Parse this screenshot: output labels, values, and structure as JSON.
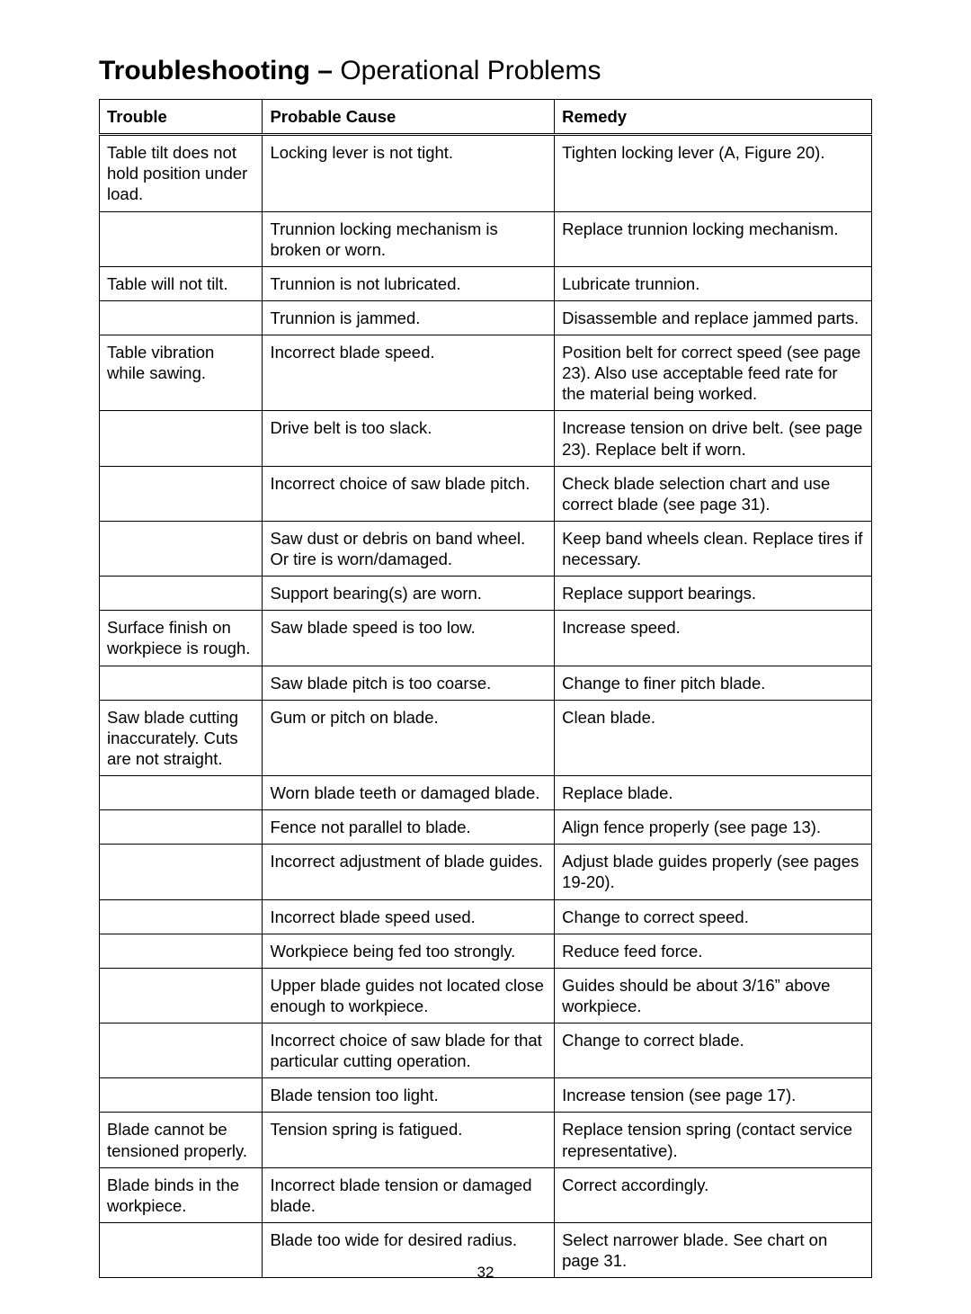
{
  "title_bold": "Troubleshooting –",
  "title_rest": " Operational Problems",
  "page_number": "32",
  "headers": {
    "trouble": "Trouble",
    "cause": "Probable Cause",
    "remedy": "Remedy"
  },
  "groups": [
    {
      "trouble": "Table tilt does not hold position under load.",
      "rows": [
        {
          "cause": "Locking lever is not tight.",
          "remedy": "Tighten locking lever (A, Figure 20)."
        },
        {
          "cause": "Trunnion locking mechanism is broken or worn.",
          "remedy": "Replace trunnion locking mechanism."
        }
      ]
    },
    {
      "trouble": "Table will not tilt.",
      "rows": [
        {
          "cause": "Trunnion is not lubricated.",
          "remedy": "Lubricate trunnion."
        },
        {
          "cause": "Trunnion is jammed.",
          "remedy": "Disassemble and replace jammed parts."
        }
      ]
    },
    {
      "trouble": "Table vibration while sawing.",
      "rows": [
        {
          "cause": "Incorrect blade speed.",
          "remedy": "Position belt for correct speed (see page 23). Also use acceptable feed rate for the material being worked."
        },
        {
          "cause": "Drive belt is too slack.",
          "remedy": "Increase tension on drive belt. (see page 23). Replace belt if worn."
        },
        {
          "cause": "Incorrect choice of saw blade pitch.",
          "remedy": "Check blade selection chart and use correct blade (see page 31)."
        },
        {
          "cause": "Saw dust or debris on band wheel. Or tire is worn/damaged.",
          "remedy": "Keep band wheels clean. Replace tires if necessary."
        },
        {
          "cause": "Support bearing(s) are worn.",
          "remedy": "Replace support bearings."
        }
      ]
    },
    {
      "trouble": "Surface finish on workpiece is rough.",
      "rows": [
        {
          "cause": "Saw blade speed is too low.",
          "remedy": "Increase speed."
        },
        {
          "cause": "Saw blade pitch is too coarse.",
          "remedy": "Change to finer pitch blade."
        }
      ]
    },
    {
      "trouble": "Saw blade cutting inaccurately. Cuts are not straight.",
      "rows": [
        {
          "cause": "Gum or pitch on blade.",
          "remedy": "Clean blade."
        },
        {
          "cause": "Worn blade teeth or damaged blade.",
          "remedy": "Replace blade."
        },
        {
          "cause": "Fence not parallel to blade.",
          "remedy": "Align fence properly (see page 13)."
        },
        {
          "cause": "Incorrect adjustment of blade guides.",
          "remedy": "Adjust blade guides properly (see pages 19-20)."
        },
        {
          "cause": "Incorrect blade speed used.",
          "remedy": "Change to correct speed."
        },
        {
          "cause": "Workpiece being fed too strongly.",
          "remedy": "Reduce feed force."
        },
        {
          "cause": "Upper blade guides not located close enough to workpiece.",
          "remedy": "Guides should be about 3/16” above workpiece."
        },
        {
          "cause": "Incorrect choice of saw blade for that particular cutting operation.",
          "remedy": "Change to correct blade."
        },
        {
          "cause": "Blade tension too light.",
          "remedy": "Increase tension (see page 17)."
        }
      ]
    },
    {
      "trouble": "Blade cannot be tensioned properly.",
      "rows": [
        {
          "cause": "Tension spring is fatigued.",
          "remedy": "Replace tension spring (contact service representative)."
        }
      ]
    },
    {
      "trouble": "Blade binds in the workpiece.",
      "rows": [
        {
          "cause": "Incorrect blade tension or damaged blade.",
          "remedy": "Correct accordingly."
        },
        {
          "cause": "Blade too wide for desired radius.",
          "remedy": "Select narrower blade. See chart on page 31."
        }
      ]
    }
  ]
}
